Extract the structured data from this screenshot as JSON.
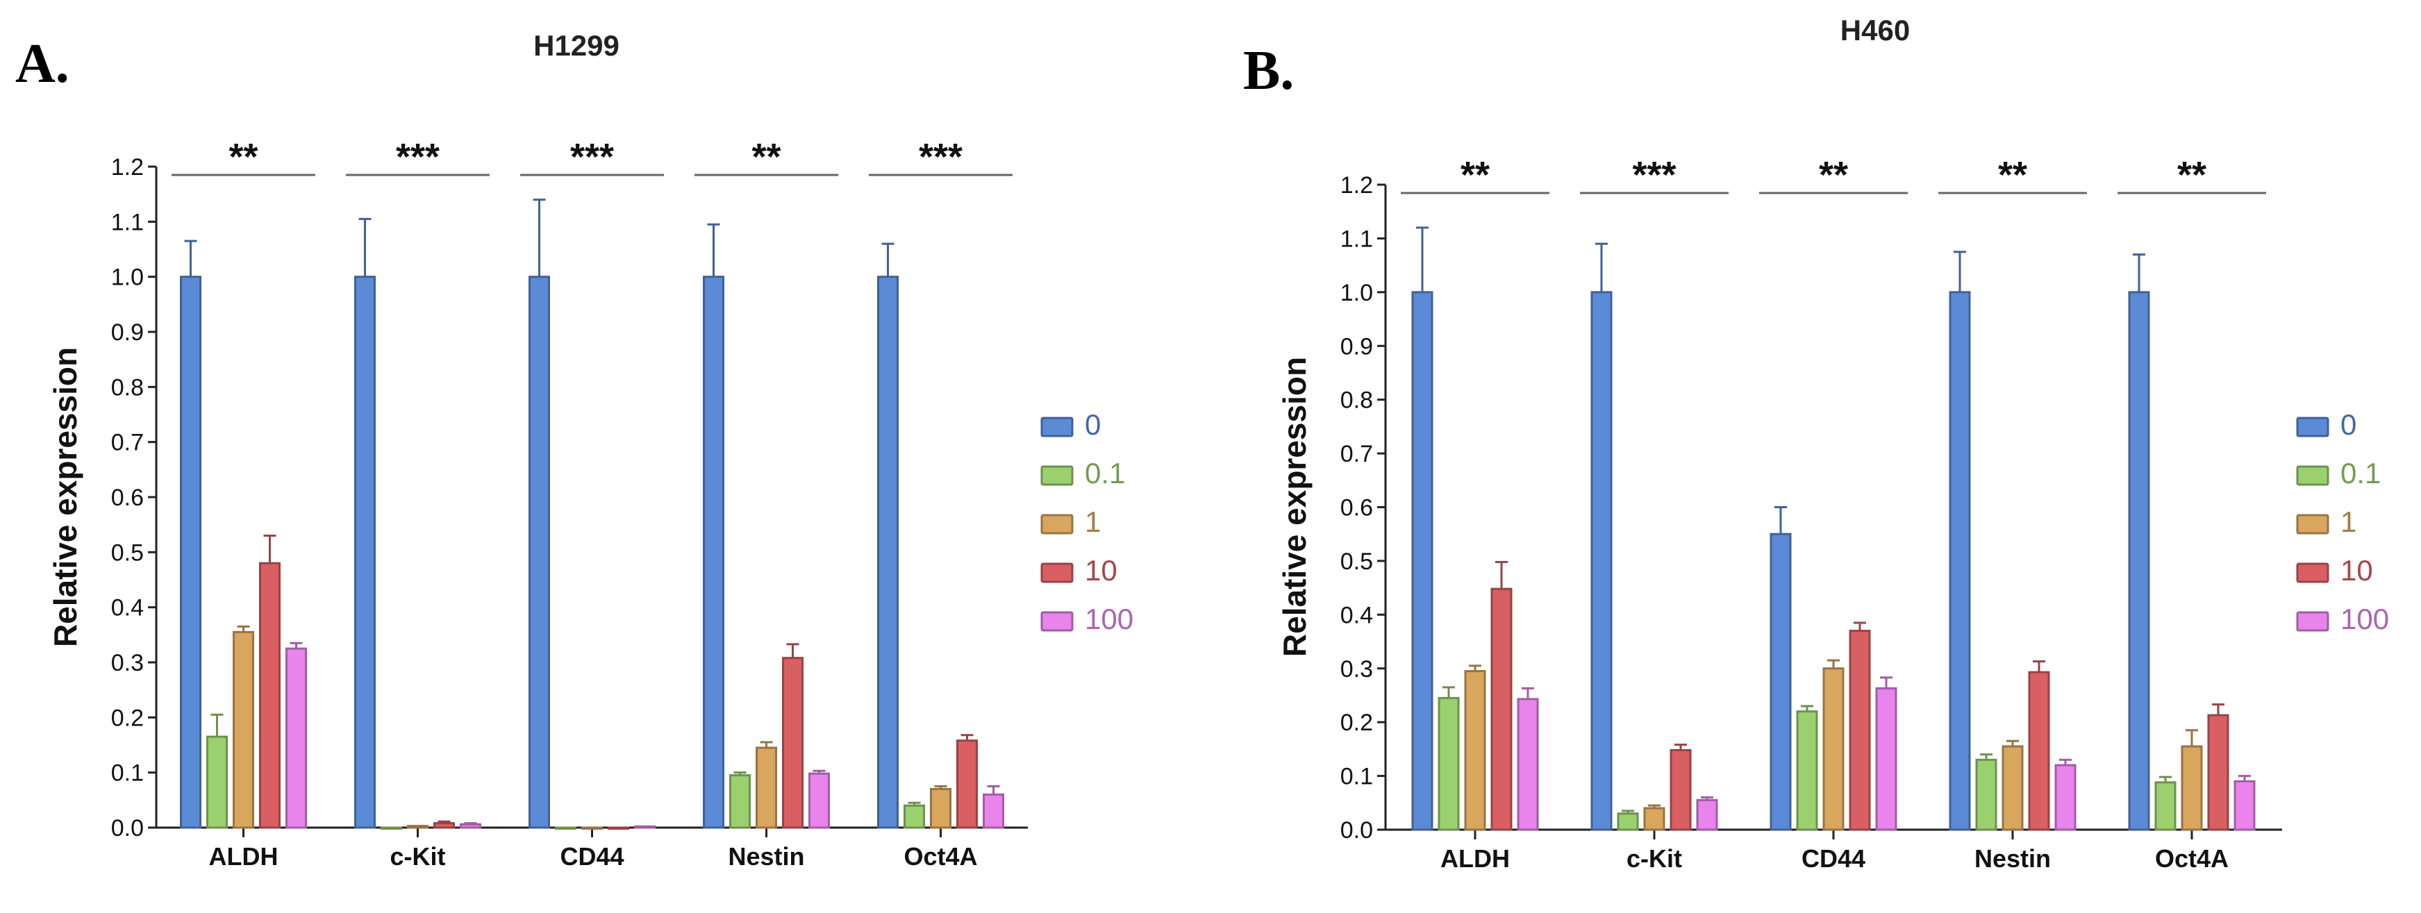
{
  "chart_data": [
    {
      "type": "bar",
      "panel": "A.",
      "title": "H1299",
      "xlabel": "",
      "ylabel": "Relative expression",
      "ylim": [
        0,
        1.2
      ],
      "yticks": [
        "0.0",
        "0.1",
        "0.2",
        "0.3",
        "0.4",
        "0.5",
        "0.6",
        "0.7",
        "0.8",
        "0.9",
        "1.0",
        "1.1",
        "1.2"
      ],
      "categories": [
        "ALDH",
        "c-Kit",
        "CD44",
        "Nestin",
        "Oct4A"
      ],
      "significance": [
        "**",
        "***",
        "***",
        "**",
        "***"
      ],
      "series": [
        {
          "name": "0",
          "color": "#5b8bd6",
          "values": [
            1.0,
            1.0,
            1.0,
            1.0,
            1.0
          ],
          "errors": [
            0.065,
            0.105,
            0.14,
            0.095,
            0.06
          ]
        },
        {
          "name": "0.1",
          "color": "#9bd06e",
          "values": [
            0.165,
            0.0,
            0.0,
            0.095,
            0.04
          ],
          "errors": [
            0.04,
            0.0,
            0.0,
            0.005,
            0.005
          ]
        },
        {
          "name": "1",
          "color": "#d9a65e",
          "values": [
            0.355,
            0.003,
            0.0,
            0.145,
            0.07
          ],
          "errors": [
            0.01,
            0.0,
            0.0,
            0.01,
            0.005
          ]
        },
        {
          "name": "10",
          "color": "#d95f63",
          "values": [
            0.48,
            0.008,
            0.0,
            0.308,
            0.158
          ],
          "errors": [
            0.05,
            0.003,
            0.0,
            0.025,
            0.01
          ]
        },
        {
          "name": "100",
          "color": "#e884ec",
          "values": [
            0.325,
            0.006,
            0.002,
            0.098,
            0.06
          ],
          "errors": [
            0.01,
            0.002,
            0.0,
            0.005,
            0.015
          ]
        }
      ]
    },
    {
      "type": "bar",
      "panel": "B.",
      "title": "H460",
      "xlabel": "",
      "ylabel": "Relative expression",
      "ylim": [
        0,
        1.2
      ],
      "yticks": [
        "0.0",
        "0.1",
        "0.2",
        "0.3",
        "0.4",
        "0.5",
        "0.6",
        "0.7",
        "0.8",
        "0.9",
        "1.0",
        "1.1",
        "1.2"
      ],
      "categories": [
        "ALDH",
        "c-Kit",
        "CD44",
        "Nestin",
        "Oct4A"
      ],
      "significance": [
        "**",
        "***",
        "**",
        "**",
        "**"
      ],
      "series": [
        {
          "name": "0",
          "color": "#5b8bd6",
          "values": [
            1.0,
            1.0,
            0.55,
            1.0,
            1.0
          ],
          "errors": [
            0.12,
            0.09,
            0.05,
            0.075,
            0.07
          ]
        },
        {
          "name": "0.1",
          "color": "#9bd06e",
          "values": [
            0.245,
            0.03,
            0.22,
            0.13,
            0.088
          ],
          "errors": [
            0.02,
            0.005,
            0.01,
            0.01,
            0.01
          ]
        },
        {
          "name": "1",
          "color": "#d9a65e",
          "values": [
            0.295,
            0.04,
            0.3,
            0.155,
            0.155
          ],
          "errors": [
            0.01,
            0.005,
            0.015,
            0.01,
            0.03
          ]
        },
        {
          "name": "10",
          "color": "#d95f63",
          "values": [
            0.448,
            0.148,
            0.37,
            0.293,
            0.213
          ],
          "errors": [
            0.05,
            0.01,
            0.015,
            0.02,
            0.02
          ]
        },
        {
          "name": "100",
          "color": "#e884ec",
          "values": [
            0.243,
            0.055,
            0.263,
            0.12,
            0.09
          ],
          "errors": [
            0.02,
            0.005,
            0.02,
            0.01,
            0.01
          ]
        }
      ]
    }
  ]
}
